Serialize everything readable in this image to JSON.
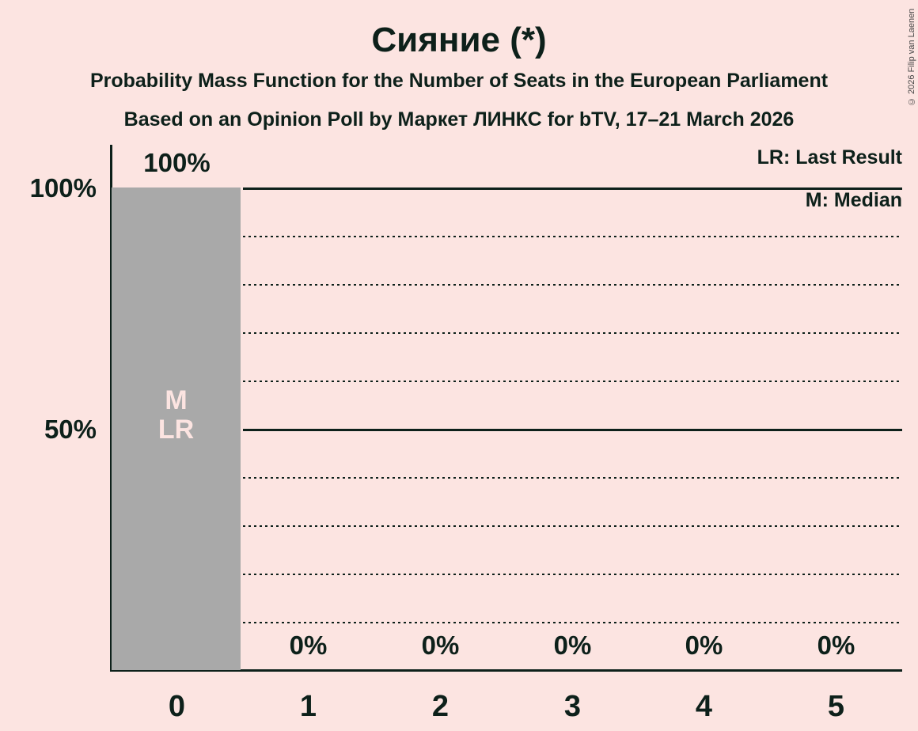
{
  "title": "Сияние (*)",
  "subtitles": [
    "Probability Mass Function for the Number of Seats in the European Parliament",
    "Based on an Opinion Poll by Маркет ЛИНКС for bTV, 17–21 March 2026"
  ],
  "copyright": "© 2026 Filip van Laenen",
  "legend": {
    "last_result": "LR: Last Result",
    "median": "M: Median"
  },
  "y_axis": {
    "labels": [
      "100%",
      "50%"
    ]
  },
  "bar_annotations": {
    "median": "M",
    "last_result": "LR"
  },
  "colors": {
    "background": "#fce4e1",
    "bar": "#a9a9a9",
    "text": "#0d201a",
    "bar_label": "#fce4e1",
    "copyright": "#474747"
  },
  "chart_data": {
    "type": "bar",
    "title": "Сияние (*)",
    "xlabel": "Number of Seats in the European Parliament",
    "ylabel": "Probability Mass",
    "categories": [
      "0",
      "1",
      "2",
      "3",
      "4",
      "5"
    ],
    "values": [
      100,
      0,
      0,
      0,
      0,
      0
    ],
    "value_labels": [
      "100%",
      "0%",
      "0%",
      "0%",
      "0%",
      "0%"
    ],
    "ylim": [
      0,
      100
    ],
    "solid_gridlines_pct": [
      100,
      50
    ],
    "dotted_gridlines_pct": [
      90,
      80,
      70,
      60,
      40,
      30,
      20,
      10
    ],
    "grid_on": true,
    "legend_position": "top-right",
    "median_seats": 0,
    "last_result_seats": 0,
    "bar_color": "#a9a9a9"
  }
}
